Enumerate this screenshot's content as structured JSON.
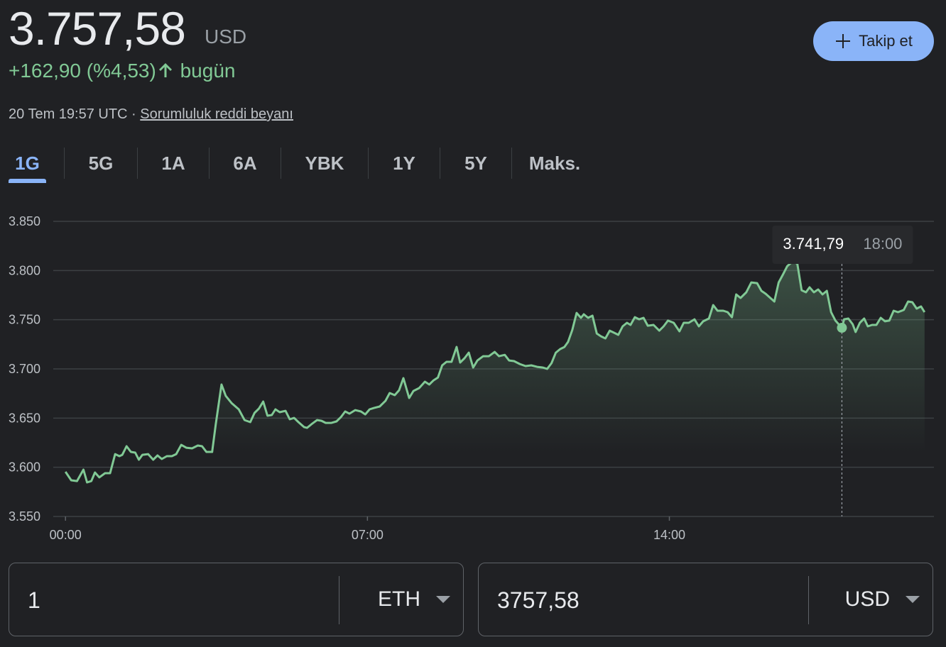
{
  "header": {
    "price": "3.757,58",
    "currency": "USD",
    "change": "+162,90",
    "percent": "(%4,53)",
    "period": "bugün",
    "timestamp": "20 Tem 19:57 UTC ·",
    "disclaimer": "Sorumluluk reddi beyanı",
    "follow": "Takip et"
  },
  "tabs": [
    "1G",
    "5G",
    "1A",
    "6A",
    "YBK",
    "1Y",
    "5Y",
    "Maks."
  ],
  "chart_data": {
    "type": "line",
    "xlim": [
      -17,
      1208
    ],
    "xticks": [
      {
        "value": 0,
        "label": "00:00"
      },
      {
        "value": 420,
        "label": "07:00"
      },
      {
        "value": 840,
        "label": "14:00"
      }
    ],
    "ylim": [
      3550,
      3850
    ],
    "yticks": [
      {
        "value": 3550,
        "label": "3.550"
      },
      {
        "value": 3600,
        "label": "3.600"
      },
      {
        "value": 3650,
        "label": "3.650"
      },
      {
        "value": 3700,
        "label": "3.700"
      },
      {
        "value": 3750,
        "label": "3.750"
      },
      {
        "value": 3800,
        "label": "3.800"
      },
      {
        "value": 3850,
        "label": "3.850"
      }
    ],
    "grid": true,
    "series": [
      {
        "color": "#81c995",
        "x": [
          0,
          8,
          16,
          25,
          30,
          36,
          41,
          47,
          55,
          62,
          69,
          75,
          79,
          85,
          91,
          97,
          102,
          107,
          115,
          122,
          128,
          134,
          141,
          148,
          154,
          161,
          168,
          176,
          184,
          190,
          196,
          204,
          209,
          217,
          223,
          231,
          241,
          249,
          257,
          263,
          269,
          275,
          281,
          287,
          292,
          298,
          306,
          312,
          318,
          324,
          332,
          336,
          342,
          350,
          356,
          362,
          370,
          377,
          383,
          389,
          395,
          403,
          411,
          417,
          423,
          429,
          437,
          445,
          451,
          458,
          464,
          470,
          478,
          484,
          492,
          500,
          506,
          512,
          518,
          524,
          530,
          537,
          544,
          549,
          555,
          561,
          567,
          573,
          581,
          589,
          597,
          603,
          611,
          617,
          624,
          632,
          640,
          648,
          656,
          664,
          670,
          676,
          682,
          688,
          694,
          699,
          705,
          711,
          717,
          721,
          727,
          733,
          739,
          745,
          751,
          757,
          763,
          769,
          775,
          781,
          786,
          792,
          798,
          804,
          810,
          818,
          826,
          832,
          838,
          846,
          854,
          860,
          867,
          875,
          881,
          887,
          895,
          901,
          907,
          915,
          921,
          927,
          933,
          939,
          947,
          954,
          962,
          968,
          974,
          986,
          992,
          998,
          1004,
          1012,
          1018,
          1024,
          1030,
          1035,
          1041,
          1047,
          1053,
          1059,
          1065,
          1071,
          1080,
          1083,
          1089,
          1095,
          1099,
          1105,
          1111,
          1116,
          1122,
          1128,
          1134,
          1140,
          1146,
          1152,
          1158,
          1166,
          1172,
          1178,
          1184,
          1190,
          1195
        ],
        "values": [
          3595.4,
          3586.8,
          3586,
          3597.6,
          3584.6,
          3586,
          3594.7,
          3589.7,
          3594,
          3594,
          3613.4,
          3611.3,
          3612.7,
          3621.4,
          3615.6,
          3614.9,
          3607.7,
          3612.7,
          3613.4,
          3607.7,
          3612,
          3608.4,
          3611.3,
          3611.3,
          3613.4,
          3622.8,
          3619.9,
          3619.2,
          3622.1,
          3621.4,
          3615.6,
          3615.6,
          3643.7,
          3684.1,
          3672.5,
          3665.3,
          3658.9,
          3648,
          3645.9,
          3655.3,
          3659.6,
          3666.8,
          3652.4,
          3653.1,
          3658.9,
          3656,
          3657.4,
          3648.8,
          3650.2,
          3645.9,
          3640.8,
          3640.1,
          3643.7,
          3648,
          3647.3,
          3645.1,
          3645.1,
          3646.6,
          3650.9,
          3656.7,
          3654.5,
          3658.1,
          3656.7,
          3653.8,
          3658.9,
          3660.3,
          3661.8,
          3667.5,
          3675.5,
          3673.3,
          3678.3,
          3690.6,
          3670.4,
          3677.6,
          3680.5,
          3687,
          3684.1,
          3688.4,
          3691.3,
          3703.6,
          3707.2,
          3707.2,
          3722.3,
          3706.5,
          3710.8,
          3716.5,
          3701.4,
          3708.6,
          3712.9,
          3712.9,
          3717.2,
          3712.9,
          3714.3,
          3708.6,
          3707.9,
          3705,
          3702.9,
          3703.6,
          3702.1,
          3701.4,
          3700,
          3705.8,
          3716.5,
          3720.1,
          3722.3,
          3727.4,
          3739.6,
          3756.9,
          3751.9,
          3755.5,
          3751.9,
          3754.1,
          3736,
          3733.1,
          3731,
          3738.9,
          3736.8,
          3734.6,
          3743.3,
          3746.9,
          3744.7,
          3752.6,
          3750.4,
          3751.9,
          3743.9,
          3744.7,
          3738.9,
          3743.3,
          3749.1,
          3746.9,
          3738.2,
          3746.9,
          3746.9,
          3750.4,
          3743.3,
          3748.4,
          3751.2,
          3764.9,
          3759.1,
          3759.1,
          3757.7,
          3752.6,
          3775.7,
          3772.1,
          3777.9,
          3787.9,
          3787.2,
          3779.3,
          3776.4,
          3768.5,
          3787.9,
          3795.9,
          3804.5,
          3809.5,
          3806.7,
          3780,
          3777.9,
          3782.9,
          3777.9,
          3780.8,
          3775.7,
          3779.3,
          3757.7,
          3749.1,
          3741.79,
          3750.4,
          3751.2,
          3745.4,
          3737.5,
          3746.9,
          3751.2,
          3743.3,
          3744.7,
          3744.7,
          3751.9,
          3748.4,
          3749.1,
          3759.1,
          3757.7,
          3759.9,
          3768.5,
          3767.8,
          3761.3,
          3763.5,
          3757.7
        ]
      }
    ],
    "tooltip": {
      "x": 1080,
      "label": "18:00",
      "value": 3741.79,
      "value_label": "3.741,79"
    }
  },
  "converter": {
    "amount": "1",
    "from": "ETH",
    "result": "3757,58",
    "to": "USD"
  }
}
